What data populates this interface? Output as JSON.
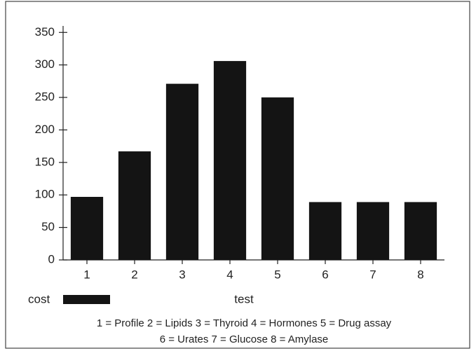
{
  "chart_data": {
    "type": "bar",
    "x_label": "test",
    "categories": [
      "1",
      "2",
      "3",
      "4",
      "5",
      "6",
      "7",
      "8"
    ],
    "series": [
      {
        "name": "cost",
        "color": "#141414",
        "values": [
          97,
          167,
          271,
          306,
          250,
          89,
          89,
          89
        ]
      }
    ],
    "ylim": [
      0,
      360
    ],
    "yticks": [
      0,
      50,
      100,
      150,
      200,
      250,
      300,
      350
    ],
    "notes": [
      "1 = Profile  2 = Lipids  3 = Thyroid  4 = Hormones  5 = Drug assay",
      "6 = Urates  7 = Glucose  8 = Amylase"
    ]
  }
}
